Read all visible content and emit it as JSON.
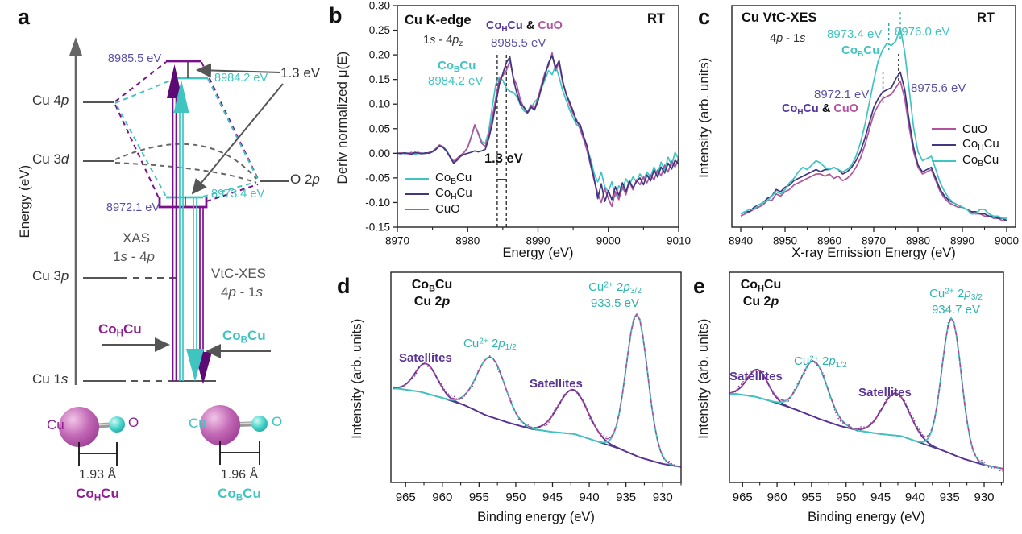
{
  "colors": {
    "cyan_line": "#3fc4c0",
    "navy_line": "#3f3880",
    "magenta_line": "#b1549e",
    "deep_purple": "#7b0f8e",
    "panel_a_purple_text": "#8d1f90",
    "slate_annotation": "#5a52a5",
    "satellite_purple": "#5a3494",
    "fit_magenta": "#b0449c",
    "raw_dots": "#7e4a88",
    "background_navy": "#3a4380",
    "axis_black": "#222222",
    "gray": "#555555"
  },
  "labels": {
    "cohcu": {
      "p": "Co",
      "s": "H",
      "t": "Cu"
    },
    "cobcu": {
      "p": "Co",
      "s": "B",
      "t": "Cu"
    },
    "cuo": "CuO",
    "rt": "RT",
    "cu4p": {
      "pre": "Cu 4",
      "it": "p"
    },
    "cu3d": {
      "pre": "Cu 3",
      "it": "d"
    },
    "cu3p": {
      "pre": "Cu 3",
      "it": "p"
    },
    "cu1s": {
      "pre": "Cu 1",
      "it": "s"
    },
    "o2p": {
      "pre": "O 2",
      "it": "p"
    },
    "xas_trans": {
      "a": "1",
      "ai": "s",
      "b": " - 4",
      "bi": "p"
    },
    "vtc_trans": {
      "a": "4",
      "ai": "p",
      "b": " - 1",
      "bi": "s"
    },
    "kedge_trans": {
      "a": "1",
      "ai": "s",
      "b": " - 4",
      "bi": "p",
      "sub": "z"
    },
    "cu2p": {
      "pre": "Cu 2",
      "it": "p"
    },
    "cu2p32": {
      "pre": "Cu",
      "sup": "2+",
      "mid": " 2",
      "it": "p",
      "sub": "3/2"
    },
    "cu2p12": {
      "pre": "Cu",
      "sup": "2+",
      "mid": " 2",
      "it": "p",
      "sub": "1/2"
    },
    "satellites": "Satellites"
  },
  "panel_a": {
    "letter": "a",
    "axis_label": "Energy (eV)",
    "e_top_purple": "8985.5 eV",
    "e_top_cyan": "8984.2 eV",
    "e_low_purple": "8972.1 eV",
    "e_low_cyan": "8973.4 eV",
    "gap": "1.3 eV",
    "xas": "XAS",
    "vtc": "VtC-XES",
    "cu": "Cu",
    "o": "O",
    "bond_1": "1.93 Å",
    "bond_2": "1.96 Å"
  },
  "panel_b": {
    "letter": "b",
    "title": "Cu K-edge",
    "rt": "RT",
    "amp": "&",
    "peak_cohcu_cuo": "8985.5 eV",
    "peak_cobcu": "8984.2 eV",
    "gap": "1.3 eV"
  },
  "panel_c": {
    "letter": "c",
    "title": "Cu VtC-XES",
    "rt": "RT",
    "amp": "&",
    "e1": "8973.4 eV",
    "e2": "8976.0 eV",
    "e3": "8972.1 eV",
    "e4": "8975.6 eV"
  },
  "panel_d": {
    "letter": "d",
    "p32_ev": "933.5 eV"
  },
  "panel_e": {
    "letter": "e",
    "p32_ev": "934.7 eV"
  },
  "chart_data": [
    {
      "id": "b",
      "type": "line",
      "title": "Cu K-edge",
      "xlabel": "Energy (eV)",
      "ylabel": "Deriv normalized μ(E)",
      "x_range": [
        8970,
        9010
      ],
      "y_range": [
        -0.15,
        0.3
      ],
      "x_ticks": [
        8970,
        8980,
        8990,
        9000,
        9010
      ],
      "x_minor": 5,
      "y_ticks": [
        0.3,
        0.25,
        0.2,
        0.15,
        0.1,
        0.05,
        0.0,
        -0.05,
        -0.1,
        -0.15
      ],
      "y_decimals": 2,
      "annotated_peaks": {
        "cobcu_ev": 8984.2,
        "cohcu_cuo_ev": 8985.5,
        "separation_ev": 1.3
      },
      "guides": [
        {
          "x": 8984.2,
          "y1": -0.15,
          "y2": 0.207,
          "color": "#333",
          "dash": "4 3"
        },
        {
          "x": 8985.5,
          "y1": -0.15,
          "y2": 0.207,
          "color": "#333",
          "dash": "4 3"
        }
      ],
      "hlines": [
        {
          "y": -0.053,
          "x1": 8984.2,
          "x2": 8985.5,
          "color": "#333"
        }
      ],
      "legend_position": "bottom-left",
      "series": [
        {
          "name": "CoBCu",
          "color": "#3fc4c0",
          "lw": 1.7,
          "x0": 8970,
          "dx": 0.5,
          "y": [
            0,
            0.001,
            -0.001,
            0,
            0.002,
            -0.002,
            0,
            0.001,
            -0.001,
            0.002,
            0.004,
            0.009,
            0.016,
            0.014,
            0.006,
            -0.006,
            -0.018,
            -0.012,
            -0.004,
            0.002,
            0.012,
            0.032,
            0.056,
            0.042,
            0.024,
            0.02,
            0.045,
            0.095,
            0.14,
            0.155,
            0.148,
            0.132,
            0.126,
            0.124,
            0.115,
            0.098,
            0.086,
            0.082,
            0.092,
            0.104,
            0.112,
            0.132,
            0.15,
            0.168,
            0.16,
            0.178,
            0.155,
            0.128,
            0.108,
            0.088,
            0.072,
            0.058,
            0.052,
            0.028,
            0.008,
            -0.012,
            -0.042,
            -0.058,
            -0.038,
            -0.068,
            -0.078,
            -0.058,
            -0.088,
            -0.066,
            -0.074,
            -0.052,
            -0.064,
            -0.048,
            -0.058,
            -0.042,
            -0.054,
            -0.038,
            -0.048,
            -0.028,
            -0.044,
            -0.018,
            -0.034,
            -0.008,
            -0.024,
            0.002,
            -0.012
          ]
        },
        {
          "name": "CuO",
          "color": "#b1549e",
          "lw": 1.7,
          "x0": 8970,
          "dx": 0.5,
          "y": [
            0,
            0.001,
            0,
            -0.001,
            0.001,
            0,
            0.002,
            -0.001,
            0,
            0.001,
            0.004,
            0.01,
            0.017,
            0.013,
            0.005,
            -0.007,
            -0.016,
            -0.01,
            -0.004,
            0.002,
            0.012,
            0.034,
            0.058,
            0.04,
            0.02,
            0.014,
            0.036,
            0.072,
            0.112,
            0.15,
            0.158,
            0.168,
            0.188,
            0.154,
            0.138,
            0.108,
            0.092,
            0.084,
            0.098,
            0.09,
            0.112,
            0.14,
            0.164,
            0.178,
            0.204,
            0.168,
            0.184,
            0.144,
            0.122,
            0.098,
            0.08,
            0.068,
            0.048,
            0.028,
            0.004,
            -0.026,
            -0.056,
            -0.082,
            -0.1,
            -0.072,
            -0.092,
            -0.108,
            -0.078,
            -0.094,
            -0.068,
            -0.084,
            -0.058,
            -0.074,
            -0.054,
            -0.064,
            -0.048,
            -0.06,
            -0.044,
            -0.054,
            -0.034,
            -0.046,
            -0.024,
            -0.038,
            -0.016,
            -0.028,
            -0.01
          ]
        },
        {
          "name": "CoHCu",
          "color": "#3f3880",
          "lw": 1.7,
          "x0": 8970,
          "dx": 0.5,
          "y": [
            0,
            -0.001,
            0.001,
            0,
            -0.002,
            0.002,
            0,
            -0.001,
            0.001,
            0,
            0.003,
            0.008,
            0.015,
            0.012,
            0.004,
            -0.008,
            -0.02,
            -0.014,
            -0.006,
            -0.002,
            0,
            0.002,
            0.005,
            0.003,
            0.005,
            0.008,
            0.03,
            0.06,
            0.1,
            0.14,
            0.162,
            0.184,
            0.196,
            0.15,
            0.122,
            0.1,
            0.094,
            0.082,
            0.094,
            0.088,
            0.106,
            0.134,
            0.158,
            0.184,
            0.198,
            0.174,
            0.188,
            0.148,
            0.12,
            0.104,
            0.086,
            0.064,
            0.058,
            0.034,
            0.014,
            -0.022,
            -0.052,
            -0.092,
            -0.062,
            -0.098,
            -0.076,
            -0.094,
            -0.068,
            -0.086,
            -0.06,
            -0.078,
            -0.056,
            -0.07,
            -0.058,
            -0.05,
            -0.064,
            -0.044,
            -0.056,
            -0.034,
            -0.048,
            -0.028,
            -0.04,
            -0.02,
            -0.032,
            -0.014,
            -0.022
          ]
        }
      ]
    },
    {
      "id": "c",
      "type": "line",
      "title": "Cu VtC-XES",
      "xlabel": "X-ray Emission Energy (eV)",
      "ylabel": "Intensity (arb. units)",
      "x_range": [
        8938,
        9002
      ],
      "y_range": [
        0,
        1
      ],
      "x_ticks": [
        8940,
        8950,
        8960,
        8970,
        8980,
        8990,
        9000
      ],
      "x_minor": 5,
      "annotated_peaks": {
        "cobcu_ev": [
          8973.4,
          8976.0
        ],
        "cohcu_cuo_ev": [
          8972.1,
          8975.6
        ]
      },
      "guides": [
        {
          "x": 8973.4,
          "y1": 0.8,
          "y2": 0.93,
          "color": "#2aa7a4",
          "dash": "3 3"
        },
        {
          "x": 8976.0,
          "y1": 0.85,
          "y2": 0.97,
          "color": "#2aa7a4",
          "dash": "3 3"
        },
        {
          "x": 8972.1,
          "y1": 0.56,
          "y2": 0.71,
          "color": "#333",
          "dash": "3 3"
        },
        {
          "x": 8975.6,
          "y1": 0.64,
          "y2": 0.79,
          "color": "#333",
          "dash": "3 3"
        }
      ],
      "legend_position": "right",
      "series": [
        {
          "name": "CuO",
          "color": "#b1549e",
          "lw": 1.7,
          "x0": 8940,
          "dx": 1,
          "y": [
            0.05,
            0.06,
            0.07,
            0.08,
            0.09,
            0.1,
            0.12,
            0.12,
            0.15,
            0.14,
            0.16,
            0.17,
            0.19,
            0.2,
            0.21,
            0.22,
            0.23,
            0.24,
            0.24,
            0.23,
            0.24,
            0.22,
            0.23,
            0.21,
            0.22,
            0.24,
            0.27,
            0.31,
            0.37,
            0.44,
            0.51,
            0.55,
            0.58,
            0.59,
            0.6,
            0.63,
            0.66,
            0.58,
            0.45,
            0.34,
            0.27,
            0.24,
            0.25,
            0.26,
            0.21,
            0.16,
            0.13,
            0.11,
            0.1,
            0.09,
            0.09,
            0.08,
            0.07,
            0.06,
            0.06,
            0.05,
            0.05,
            0.04,
            0.04,
            0.03,
            0.03
          ]
        },
        {
          "name": "CoHCu",
          "color": "#3f3880",
          "lw": 1.7,
          "x0": 8940,
          "dx": 1,
          "y": [
            0.06,
            0.07,
            0.07,
            0.09,
            0.1,
            0.11,
            0.13,
            0.14,
            0.17,
            0.16,
            0.18,
            0.19,
            0.21,
            0.22,
            0.23,
            0.24,
            0.25,
            0.26,
            0.25,
            0.26,
            0.26,
            0.27,
            0.26,
            0.24,
            0.25,
            0.27,
            0.3,
            0.34,
            0.4,
            0.47,
            0.54,
            0.58,
            0.61,
            0.62,
            0.63,
            0.67,
            0.7,
            0.62,
            0.48,
            0.36,
            0.28,
            0.25,
            0.26,
            0.27,
            0.22,
            0.17,
            0.14,
            0.12,
            0.11,
            0.1,
            0.09,
            0.08,
            0.07,
            0.07,
            0.06,
            0.06,
            0.05,
            0.05,
            0.04,
            0.04,
            0.03
          ]
        },
        {
          "name": "CoBCu",
          "color": "#3fc4c0",
          "lw": 1.7,
          "x0": 8940,
          "dx": 1,
          "y": [
            0.06,
            0.07,
            0.08,
            0.08,
            0.1,
            0.11,
            0.12,
            0.14,
            0.16,
            0.15,
            0.17,
            0.2,
            0.22,
            0.25,
            0.27,
            0.26,
            0.28,
            0.3,
            0.29,
            0.27,
            0.26,
            0.27,
            0.26,
            0.25,
            0.26,
            0.28,
            0.32,
            0.38,
            0.46,
            0.56,
            0.66,
            0.75,
            0.8,
            0.83,
            0.82,
            0.84,
            0.9,
            0.79,
            0.62,
            0.45,
            0.34,
            0.3,
            0.31,
            0.32,
            0.26,
            0.2,
            0.16,
            0.13,
            0.11,
            0.1,
            0.09,
            0.08,
            0.06,
            0.06,
            0.08,
            0.08,
            0.06,
            0.05,
            0.05,
            0.04,
            0.04
          ]
        }
      ]
    },
    {
      "id": "d",
      "type": "xps",
      "sample": "CoBCu",
      "region": "Cu 2p",
      "xlabel": "Binding energy (eV)",
      "ylabel": "Intensity (arb. units)",
      "x_range": [
        967,
        927.5
      ],
      "y_range": [
        0,
        1.02
      ],
      "x_ticks": [
        965,
        960,
        955,
        950,
        945,
        940,
        935,
        930
      ],
      "x_minor": 2.5,
      "annotated_peaks": {
        "cu2p32_ev": 933.5
      },
      "xps": {
        "bg": {
          "x0": 927,
          "dx": 3,
          "y": [
            0.072,
            0.09,
            0.12,
            0.165,
            0.2,
            0.235,
            0.245,
            0.26,
            0.29,
            0.325,
            0.375,
            0.41,
            0.44,
            0.455
          ]
        },
        "sat": {
          "color": "#5a3494",
          "peaks": [
            {
              "c": 962.2,
              "h": 0.145,
              "w": 1.5
            },
            {
              "c": 942.2,
              "h": 0.215,
              "w": 2.0
            }
          ]
        },
        "main": {
          "color": "#3fc4c0",
          "peaks": [
            {
              "c": 933.5,
              "h": 0.69,
              "w": 1.45
            },
            {
              "c": 953.4,
              "h": 0.29,
              "w": 1.9
            }
          ]
        },
        "fit_color": "#b0449c",
        "raw": {
          "color": "#7e4a88",
          "noise": 0.013,
          "seed": 11
        },
        "bg_color": "#3a4380"
      }
    },
    {
      "id": "e",
      "type": "xps",
      "sample": "CoHCu",
      "region": "Cu 2p",
      "xlabel": "Binding energy (eV)",
      "ylabel": "Intensity (arb. units)",
      "x_range": [
        966.9,
        927.2
      ],
      "y_range": [
        0,
        1.02
      ],
      "x_ticks": [
        965,
        960,
        955,
        950,
        945,
        940,
        935,
        930
      ],
      "x_minor": 2.5,
      "annotated_peaks": {
        "cu2p32_ev": 934.7
      },
      "xps": {
        "bg": {
          "x0": 927,
          "dx": 3,
          "y": [
            0.065,
            0.085,
            0.115,
            0.155,
            0.19,
            0.225,
            0.235,
            0.25,
            0.275,
            0.31,
            0.35,
            0.385,
            0.415,
            0.43
          ]
        },
        "sat": {
          "color": "#5a3494",
          "peaks": [
            {
              "c": 962.8,
              "h": 0.135,
              "w": 1.5
            },
            {
              "c": 942.8,
              "h": 0.205,
              "w": 2.0
            }
          ]
        },
        "main": {
          "color": "#3fc4c0",
          "peaks": [
            {
              "c": 934.7,
              "h": 0.66,
              "w": 1.4
            },
            {
              "c": 954.6,
              "h": 0.27,
              "w": 1.9
            }
          ]
        },
        "fit_color": "#b0449c",
        "raw": {
          "color": "#7e4a88",
          "noise": 0.013,
          "seed": 23
        },
        "bg_color": "#3a4380"
      }
    }
  ]
}
